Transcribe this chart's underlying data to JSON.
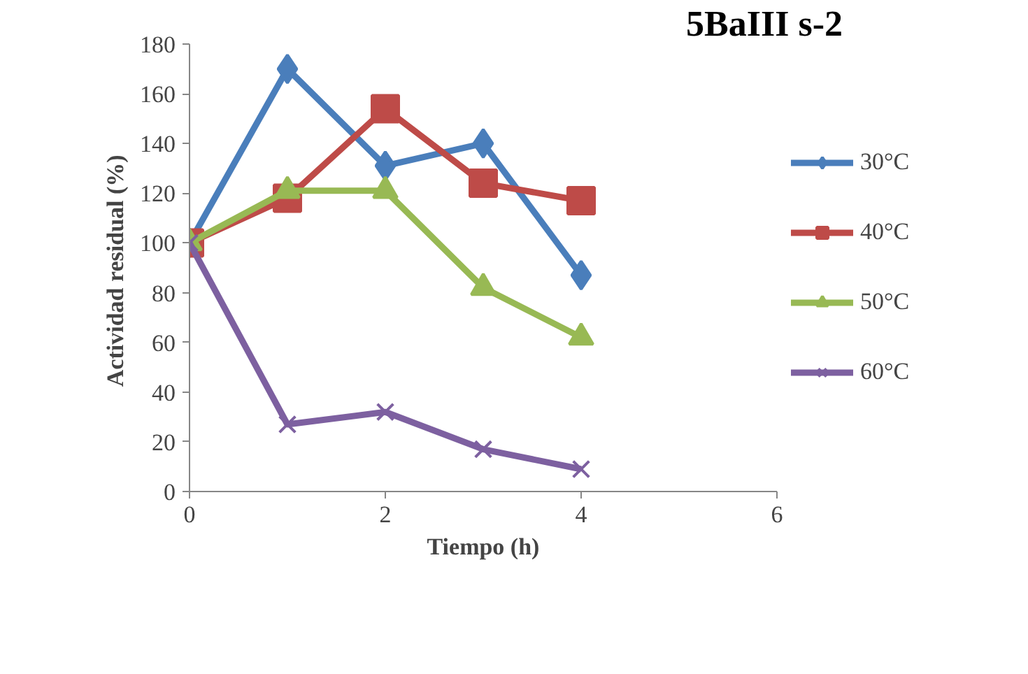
{
  "chart_data": {
    "type": "line",
    "title": "5BaIII s-2",
    "xlabel": "Tiempo (h)",
    "ylabel": "Actividad  residual (%)",
    "x": [
      0,
      1,
      2,
      3,
      4
    ],
    "xlim": [
      0,
      6
    ],
    "xticks": [
      0,
      2,
      4,
      6
    ],
    "ylim": [
      0,
      180
    ],
    "yticks": [
      0,
      20,
      40,
      60,
      80,
      100,
      120,
      140,
      160,
      180
    ],
    "grid": false,
    "legend": "right",
    "series": [
      {
        "name": "30°C",
        "color": "#4a7ebb",
        "marker": "diamond",
        "values": [
          100,
          170,
          131,
          140,
          87
        ]
      },
      {
        "name": "40°C",
        "color": "#be4b48",
        "marker": "square",
        "values": [
          100,
          118,
          154,
          124,
          117
        ]
      },
      {
        "name": "50°C",
        "color": "#98b954",
        "marker": "triangle",
        "values": [
          100,
          121,
          121,
          82,
          62
        ]
      },
      {
        "name": "60°C",
        "color": "#7d60a0",
        "marker": "cross",
        "values": [
          100,
          27,
          32,
          17,
          9
        ]
      }
    ]
  }
}
